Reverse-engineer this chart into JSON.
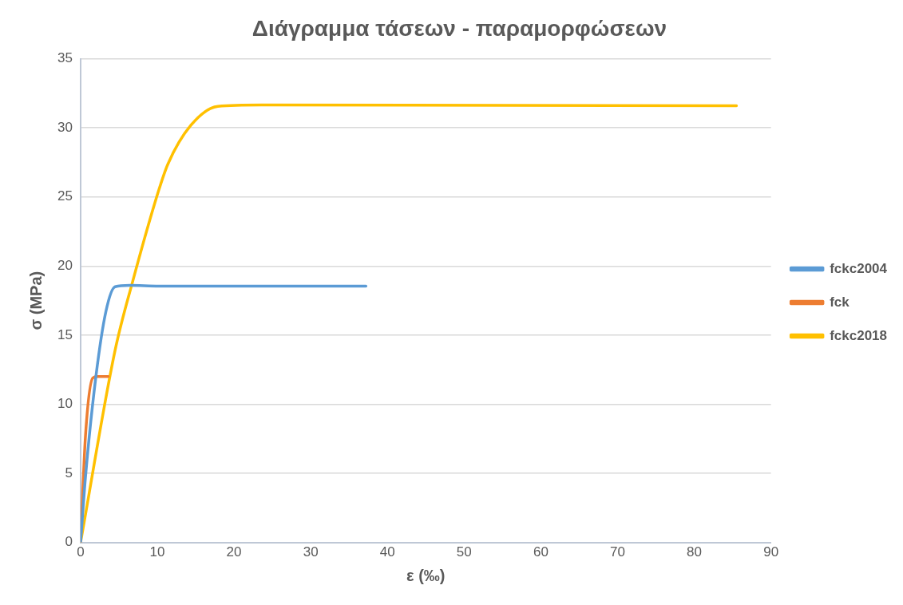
{
  "chart_data": {
    "type": "line",
    "title": "Διάγραμμα τάσεων - παραμορφώσεων",
    "xlabel": "ε (‰)",
    "ylabel": "σ (MPa)",
    "xlim": [
      0,
      90
    ],
    "xticks": [
      0,
      10,
      20,
      30,
      40,
      50,
      60,
      70,
      80,
      90
    ],
    "ylim": [
      0,
      35
    ],
    "yticks": [
      0,
      5,
      10,
      15,
      20,
      25,
      30,
      35
    ],
    "grid": "y",
    "legend": "right",
    "marker": "none",
    "line_style": "solid",
    "series": [
      {
        "name": "fckc2004",
        "color": "#5b9bd5",
        "x": [
          0,
          0.65,
          2.0,
          3.3,
          4.5,
          6.4,
          10.2,
          37.2
        ],
        "values": [
          0,
          4.8,
          12.0,
          16.7,
          18.5,
          18.6,
          18.55,
          18.55
        ]
      },
      {
        "name": "fck",
        "color": "#ed7d31",
        "x": [
          0,
          0.65,
          1.6,
          2.2,
          3.6
        ],
        "values": [
          0,
          7.8,
          11.9,
          12.0,
          12.0
        ]
      },
      {
        "name": "fckc2018",
        "color": "#ffc000",
        "x": [
          0,
          4.5,
          6.8,
          10.2,
          11.4,
          14.4,
          17.9,
          23.6,
          85.5
        ],
        "values": [
          0,
          13.9,
          18.9,
          25.5,
          27.4,
          30.2,
          31.55,
          31.65,
          31.6
        ]
      }
    ]
  }
}
